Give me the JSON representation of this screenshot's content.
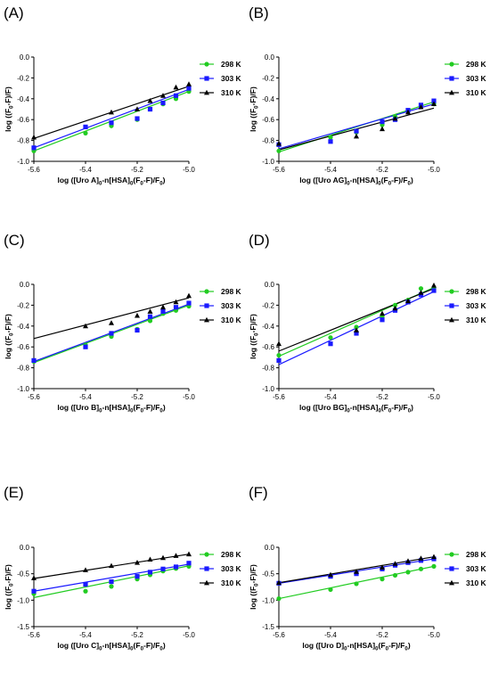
{
  "colors": {
    "s298": "#22cc22",
    "s303": "#1a1aff",
    "s310": "#000000"
  },
  "chart_data": [
    {
      "panel": "(A)",
      "type": "scatter",
      "xlabel": "log ([Uro A]0-n[HSA]0(F0-F)/F0)",
      "ylabel": "log ((F0-F)/F)",
      "xlim": [
        -5.6,
        -5.0
      ],
      "ylim": [
        -1.0,
        0.0
      ],
      "xticks": [
        "-5.6",
        "-5.4",
        "-5.2",
        "-5.0"
      ],
      "yticks": [
        "-1.0",
        "-0.8",
        "-0.6",
        "-0.4",
        "-0.2",
        "0.0"
      ],
      "legend": "right",
      "series": [
        {
          "name": "298 K",
          "marker": "circle",
          "x": [
            -5.6,
            -5.4,
            -5.3,
            -5.2,
            -5.15,
            -5.1,
            -5.05,
            -5.0
          ],
          "y": [
            -0.9,
            -0.73,
            -0.66,
            -0.6,
            -0.5,
            -0.45,
            -0.4,
            -0.33
          ],
          "fit": [
            [
              -5.6,
              -0.9
            ],
            [
              -5.0,
              -0.33
            ]
          ]
        },
        {
          "name": "303 K",
          "marker": "square",
          "x": [
            -5.6,
            -5.4,
            -5.3,
            -5.2,
            -5.15,
            -5.1,
            -5.05,
            -5.0
          ],
          "y": [
            -0.87,
            -0.67,
            -0.63,
            -0.59,
            -0.5,
            -0.44,
            -0.37,
            -0.3
          ],
          "fit": [
            [
              -5.6,
              -0.87
            ],
            [
              -5.0,
              -0.31
            ]
          ]
        },
        {
          "name": "310 K",
          "marker": "triangle",
          "x": [
            -5.6,
            -5.3,
            -5.2,
            -5.15,
            -5.1,
            -5.05,
            -5.0
          ],
          "y": [
            -0.77,
            -0.53,
            -0.5,
            -0.42,
            -0.37,
            -0.29,
            -0.26
          ],
          "fit": [
            [
              -5.6,
              -0.78
            ],
            [
              -5.0,
              -0.28
            ]
          ]
        }
      ]
    },
    {
      "panel": "(B)",
      "type": "scatter",
      "xlabel": "log ([Uro AG]0-n[HSA]0(F0-F)/F0)",
      "ylabel": "log ((F0-F)/F)",
      "xlim": [
        -5.6,
        -5.0
      ],
      "ylim": [
        -1.0,
        0.0
      ],
      "xticks": [
        "-5.6",
        "-5.4",
        "-5.2",
        "-5.0"
      ],
      "yticks": [
        "-1.0",
        "-0.8",
        "-0.6",
        "-0.4",
        "-0.2",
        "0.0"
      ],
      "legend": "right",
      "series": [
        {
          "name": "298 K",
          "marker": "circle",
          "x": [
            -5.6,
            -5.4,
            -5.3,
            -5.2,
            -5.15,
            -5.1,
            -5.05,
            -5.0
          ],
          "y": [
            -0.9,
            -0.77,
            -0.72,
            -0.65,
            -0.57,
            -0.52,
            -0.47,
            -0.45
          ],
          "fit": [
            [
              -5.6,
              -0.91
            ],
            [
              -5.0,
              -0.43
            ]
          ]
        },
        {
          "name": "303 K",
          "marker": "square",
          "x": [
            -5.6,
            -5.4,
            -5.3,
            -5.2,
            -5.15,
            -5.1,
            -5.05,
            -5.0
          ],
          "y": [
            -0.84,
            -0.81,
            -0.71,
            -0.62,
            -0.6,
            -0.51,
            -0.46,
            -0.42
          ],
          "fit": [
            [
              -5.6,
              -0.88
            ],
            [
              -5.0,
              -0.45
            ]
          ]
        },
        {
          "name": "310 K",
          "marker": "triangle",
          "x": [
            -5.6,
            -5.3,
            -5.2,
            -5.15,
            -5.1,
            -5.05,
            -5.0
          ],
          "y": [
            -0.83,
            -0.76,
            -0.69,
            -0.59,
            -0.53,
            -0.48,
            -0.45
          ],
          "fit": [
            [
              -5.6,
              -0.89
            ],
            [
              -5.0,
              -0.49
            ]
          ]
        }
      ]
    },
    {
      "panel": "(C)",
      "type": "scatter",
      "xlabel": "log ([Uro B]0-n[HSA]0(F0-F)/F0)",
      "ylabel": "log ((F0-F)/F)",
      "xlim": [
        -5.6,
        -5.0
      ],
      "ylim": [
        -1.0,
        0.0
      ],
      "xticks": [
        "-5.6",
        "-5.4",
        "-5.2",
        "-5.0"
      ],
      "yticks": [
        "-1.0",
        "-0.8",
        "-0.6",
        "-0.4",
        "-0.2",
        "0.0"
      ],
      "legend": "right",
      "series": [
        {
          "name": "298 K",
          "marker": "circle",
          "x": [
            -5.6,
            -5.4,
            -5.3,
            -5.2,
            -5.15,
            -5.1,
            -5.05,
            -5.0
          ],
          "y": [
            -0.74,
            -0.58,
            -0.5,
            -0.43,
            -0.35,
            -0.28,
            -0.25,
            -0.21
          ],
          "fit": [
            [
              -5.6,
              -0.75
            ],
            [
              -5.0,
              -0.2
            ]
          ]
        },
        {
          "name": "303 K",
          "marker": "square",
          "x": [
            -5.6,
            -5.4,
            -5.3,
            -5.2,
            -5.15,
            -5.1,
            -5.05,
            -5.0
          ],
          "y": [
            -0.73,
            -0.6,
            -0.47,
            -0.44,
            -0.31,
            -0.26,
            -0.22,
            -0.18
          ],
          "fit": [
            [
              -5.6,
              -0.74
            ],
            [
              -5.0,
              -0.19
            ]
          ]
        },
        {
          "name": "310 K",
          "marker": "triangle",
          "x": [
            -5.4,
            -5.3,
            -5.2,
            -5.15,
            -5.1,
            -5.05,
            -5.0
          ],
          "y": [
            -0.4,
            -0.37,
            -0.3,
            -0.26,
            -0.22,
            -0.17,
            -0.11
          ],
          "fit": [
            [
              -5.6,
              -0.52
            ],
            [
              -5.0,
              -0.13
            ]
          ]
        }
      ]
    },
    {
      "panel": "(D)",
      "type": "scatter",
      "xlabel": "log ([Uro BG]0-n[HSA]0(F0-F)/F0)",
      "ylabel": "log ((F0-F)/F)",
      "xlim": [
        -5.6,
        -5.0
      ],
      "ylim": [
        -1.0,
        0.0
      ],
      "xticks": [
        "-5.6",
        "-5.4",
        "-5.2",
        "-5.0"
      ],
      "yticks": [
        "-1.0",
        "-0.8",
        "-0.6",
        "-0.4",
        "-0.2",
        "0.0"
      ],
      "legend": "right",
      "series": [
        {
          "name": "298 K",
          "marker": "circle",
          "x": [
            -5.6,
            -5.4,
            -5.3,
            -5.2,
            -5.15,
            -5.1,
            -5.05,
            -5.0
          ],
          "y": [
            -0.68,
            -0.51,
            -0.41,
            -0.31,
            -0.2,
            -0.15,
            -0.04,
            -0.04
          ],
          "fit": [
            [
              -5.6,
              -0.69
            ],
            [
              -5.0,
              -0.03
            ]
          ]
        },
        {
          "name": "303 K",
          "marker": "square",
          "x": [
            -5.6,
            -5.4,
            -5.3,
            -5.2,
            -5.15,
            -5.1,
            -5.05,
            -5.0
          ],
          "y": [
            -0.73,
            -0.57,
            -0.47,
            -0.34,
            -0.25,
            -0.17,
            -0.1,
            -0.06
          ],
          "fit": [
            [
              -5.6,
              -0.77
            ],
            [
              -5.0,
              -0.07
            ]
          ]
        },
        {
          "name": "310 K",
          "marker": "triangle",
          "x": [
            -5.6,
            -5.3,
            -5.2,
            -5.15,
            -5.1,
            -5.05,
            -5.0
          ],
          "y": [
            -0.57,
            -0.44,
            -0.28,
            -0.23,
            -0.16,
            -0.08,
            -0.01
          ],
          "fit": [
            [
              -5.6,
              -0.64
            ],
            [
              -5.0,
              -0.04
            ]
          ]
        }
      ]
    },
    {
      "panel": "(E)",
      "type": "scatter",
      "xlabel": "log ([Uro C]0-n[HSA]0(F0-F)/F0)",
      "ylabel": "log ((F0-F)/F)",
      "xlim": [
        -5.6,
        -5.0
      ],
      "ylim": [
        -1.5,
        0.0
      ],
      "xticks": [
        "-5.6",
        "-5.4",
        "-5.2",
        "-5.0"
      ],
      "yticks": [
        "-1.5",
        "-1.0",
        "-0.5",
        "0.0"
      ],
      "legend": "right",
      "series": [
        {
          "name": "298 K",
          "marker": "circle",
          "x": [
            -5.6,
            -5.4,
            -5.3,
            -5.2,
            -5.15,
            -5.1,
            -5.05,
            -5.0
          ],
          "y": [
            -0.88,
            -0.83,
            -0.74,
            -0.6,
            -0.52,
            -0.45,
            -0.4,
            -0.36
          ],
          "fit": [
            [
              -5.6,
              -0.95
            ],
            [
              -5.0,
              -0.35
            ]
          ]
        },
        {
          "name": "303 K",
          "marker": "square",
          "x": [
            -5.6,
            -5.4,
            -5.3,
            -5.2,
            -5.15,
            -5.1,
            -5.05,
            -5.0
          ],
          "y": [
            -0.83,
            -0.7,
            -0.65,
            -0.55,
            -0.47,
            -0.41,
            -0.37,
            -0.3
          ],
          "fit": [
            [
              -5.6,
              -0.83
            ],
            [
              -5.0,
              -0.32
            ]
          ]
        },
        {
          "name": "310 K",
          "marker": "triangle",
          "x": [
            -5.6,
            -5.4,
            -5.3,
            -5.2,
            -5.15,
            -5.1,
            -5.05,
            -5.0
          ],
          "y": [
            -0.58,
            -0.43,
            -0.35,
            -0.29,
            -0.23,
            -0.2,
            -0.16,
            -0.13
          ],
          "fit": [
            [
              -5.6,
              -0.59
            ],
            [
              -5.0,
              -0.13
            ]
          ]
        }
      ]
    },
    {
      "panel": "(F)",
      "type": "scatter",
      "xlabel": "log ([Uro D]0-n[HSA]0(F0-F)/F0)",
      "ylabel": "log ((F0-F)/F)",
      "xlim": [
        -5.6,
        -5.0
      ],
      "ylim": [
        -1.5,
        0.0
      ],
      "xticks": [
        "-5.6",
        "-5.4",
        "-5.2",
        "-5.0"
      ],
      "yticks": [
        "-1.5",
        "-1.0",
        "-0.5",
        "0.0"
      ],
      "legend": "right",
      "series": [
        {
          "name": "298 K",
          "marker": "circle",
          "x": [
            -5.6,
            -5.4,
            -5.3,
            -5.2,
            -5.15,
            -5.1,
            -5.05,
            -5.0
          ],
          "y": [
            -0.97,
            -0.8,
            -0.69,
            -0.6,
            -0.53,
            -0.47,
            -0.41,
            -0.36
          ],
          "fit": [
            [
              -5.6,
              -0.97
            ],
            [
              -5.0,
              -0.36
            ]
          ]
        },
        {
          "name": "303 K",
          "marker": "square",
          "x": [
            -5.6,
            -5.4,
            -5.3,
            -5.2,
            -5.15,
            -5.1,
            -5.05,
            -5.0
          ],
          "y": [
            -0.68,
            -0.55,
            -0.5,
            -0.41,
            -0.34,
            -0.29,
            -0.25,
            -0.22
          ],
          "fit": [
            [
              -5.6,
              -0.68
            ],
            [
              -5.0,
              -0.22
            ]
          ]
        },
        {
          "name": "310 K",
          "marker": "triangle",
          "x": [
            -5.6,
            -5.4,
            -5.3,
            -5.2,
            -5.15,
            -5.1,
            -5.05,
            -5.0
          ],
          "y": [
            -0.67,
            -0.52,
            -0.46,
            -0.38,
            -0.31,
            -0.26,
            -0.21,
            -0.18
          ],
          "fit": [
            [
              -5.6,
              -0.67
            ],
            [
              -5.0,
              -0.18
            ]
          ]
        }
      ]
    }
  ]
}
